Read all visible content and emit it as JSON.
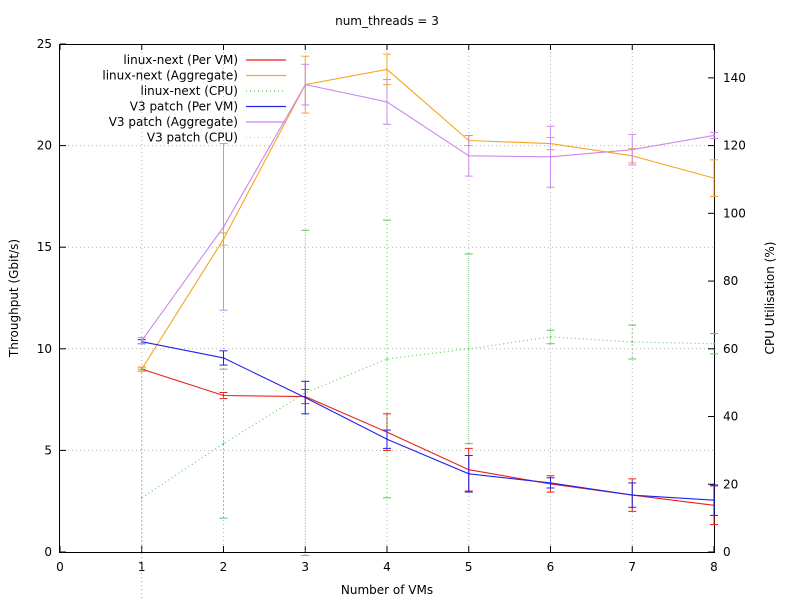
{
  "chart_data": {
    "type": "line",
    "title": "num_threads = 3",
    "xlabel": "Number of VMs",
    "ylabel": "Throughput (Gbit/s)",
    "y2label": "CPU Utilisation (%)",
    "xlim": [
      0,
      8
    ],
    "ylim": [
      0,
      25
    ],
    "y2lim": [
      0,
      150
    ],
    "xticks": [
      "0",
      "1",
      "2",
      "3",
      "4",
      "5",
      "6",
      "7",
      "8"
    ],
    "yticks": [
      "0",
      "5",
      "10",
      "15",
      "20",
      "25"
    ],
    "y2ticks": [
      "0",
      "20",
      "40",
      "60",
      "80",
      "100",
      "120",
      "140"
    ],
    "grid": true,
    "legend_position": "top-left",
    "x": [
      1,
      2,
      3,
      4,
      5,
      6,
      7,
      8
    ],
    "series": [
      {
        "name": "linux-next (Per VM)",
        "axis": "y",
        "color": "#e8221a",
        "dash": "solid",
        "values": [
          9.0,
          7.7,
          7.65,
          5.9,
          4.05,
          3.35,
          2.8,
          2.3
        ],
        "err": [
          0.1,
          0.15,
          0.35,
          0.9,
          1.05,
          0.4,
          0.8,
          0.95
        ]
      },
      {
        "name": "linux-next (Aggregate)",
        "axis": "y",
        "color": "#f5a623",
        "dash": "solid",
        "values": [
          9.0,
          15.4,
          23.0,
          23.75,
          20.25,
          20.1,
          19.5,
          18.4
        ],
        "err": [
          0.1,
          0.3,
          1.4,
          0.75,
          0.25,
          0.3,
          0.35,
          0.9
        ]
      },
      {
        "name": "linux-next (CPU)",
        "axis": "y2",
        "color": "#59c959",
        "dash": "dotted",
        "values": [
          16,
          32,
          47,
          57,
          60,
          63.5,
          62,
          61.5
        ],
        "err": [
          38,
          22,
          48,
          41,
          28,
          2,
          5,
          3
        ]
      },
      {
        "name": "V3 patch (Per VM)",
        "axis": "y",
        "color": "#2222e8",
        "dash": "solid",
        "values": [
          10.35,
          9.55,
          7.6,
          5.55,
          3.85,
          3.4,
          2.8,
          2.55
        ],
        "err": [
          0.1,
          0.35,
          0.8,
          0.45,
          0.9,
          0.25,
          0.6,
          0.75
        ]
      },
      {
        "name": "V3 patch (Aggregate)",
        "axis": "y",
        "color": "#cc88ee",
        "dash": "solid",
        "values": [
          10.4,
          16.0,
          23.0,
          22.15,
          19.5,
          19.45,
          19.8,
          20.5
        ],
        "err": [
          0.15,
          4.1,
          1.0,
          1.1,
          1.0,
          1.5,
          0.75,
          0.15
        ]
      },
      {
        "name": "V3 patch (CPU)",
        "axis": "y2",
        "color": "#b8e8b8",
        "dash": "dotted",
        "values": [
          null,
          null,
          null,
          null,
          null,
          null,
          null,
          null
        ],
        "err": [
          null,
          null,
          null,
          null,
          null,
          null,
          null,
          null
        ]
      }
    ]
  }
}
